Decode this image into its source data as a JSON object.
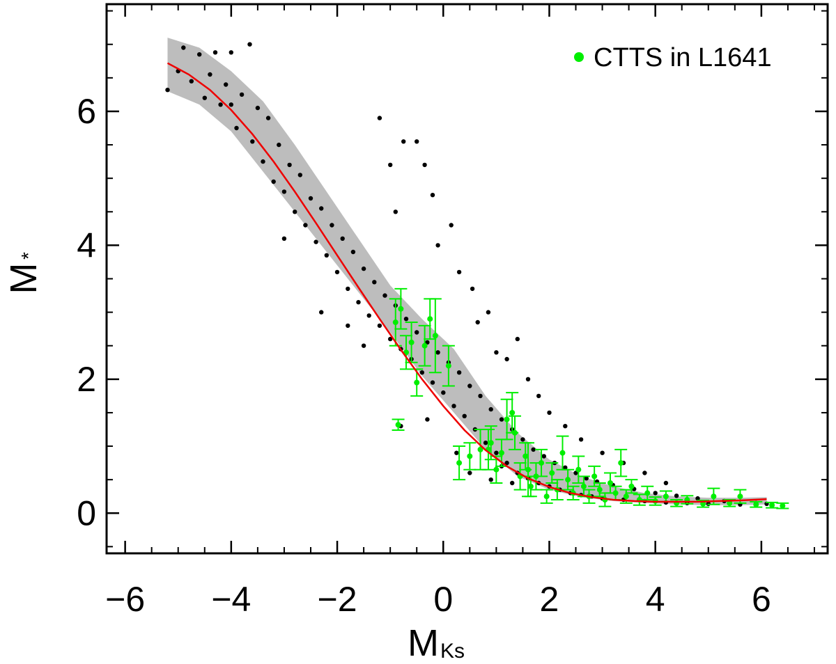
{
  "chart_data": {
    "type": "scatter",
    "title": "",
    "xlabel": {
      "main": "M",
      "sub": "Ks"
    },
    "ylabel": {
      "main": "M",
      "sub": "*"
    },
    "xlim": [
      -6.35,
      7.25
    ],
    "ylim": [
      -0.6,
      7.6
    ],
    "xticks": [
      -6,
      -4,
      -2,
      0,
      2,
      4,
      6
    ],
    "xtick_labels": [
      "−6",
      "−4",
      "−2",
      "0",
      "2",
      "4",
      "6"
    ],
    "yticks": [
      0,
      2,
      4,
      6
    ],
    "ytick_labels": [
      "0",
      "2",
      "4",
      "6"
    ],
    "grid": false,
    "legend": {
      "position": "top-right",
      "entries": [
        "CTTS in L1641"
      ]
    },
    "colors": {
      "model": "#000000",
      "ctts": "#00ee00",
      "fit": "#ee0000",
      "band": "#bdbdbd"
    },
    "series": [
      {
        "kind": "band",
        "x": [
          -5.2,
          -4.6,
          -4.0,
          -3.4,
          -2.8,
          -2.2,
          -1.6,
          -1.0,
          -0.4,
          0.2,
          0.8,
          1.4,
          2.0,
          2.6,
          3.2,
          3.8,
          4.4,
          5.0,
          5.6,
          6.1
        ],
        "lo": [
          6.3,
          6.1,
          5.7,
          5.1,
          4.5,
          3.9,
          3.3,
          2.7,
          2.05,
          1.5,
          0.95,
          0.55,
          0.35,
          0.24,
          0.18,
          0.15,
          0.13,
          0.12,
          0.12,
          0.13
        ],
        "hi": [
          7.1,
          6.95,
          6.6,
          6.15,
          5.5,
          4.8,
          4.1,
          3.4,
          2.9,
          2.45,
          1.75,
          1.2,
          0.8,
          0.55,
          0.4,
          0.3,
          0.25,
          0.23,
          0.23,
          0.24
        ]
      },
      {
        "kind": "model-points",
        "points": [
          [
            -5.2,
            6.32
          ],
          [
            -5.0,
            6.6
          ],
          [
            -4.9,
            6.95
          ],
          [
            -4.75,
            6.45
          ],
          [
            -4.6,
            6.85
          ],
          [
            -4.5,
            6.2
          ],
          [
            -4.4,
            6.55
          ],
          [
            -4.3,
            6.88
          ],
          [
            -4.2,
            6.1
          ],
          [
            -4.1,
            6.4
          ],
          [
            -4.0,
            6.88
          ],
          [
            -3.9,
            5.75
          ],
          [
            -3.8,
            6.25
          ],
          [
            -3.65,
            7.0
          ],
          [
            -3.6,
            5.55
          ],
          [
            -3.5,
            6.05
          ],
          [
            -3.4,
            5.25
          ],
          [
            -3.3,
            5.9
          ],
          [
            -3.2,
            4.95
          ],
          [
            -3.1,
            5.5
          ],
          [
            -3.0,
            4.8
          ],
          [
            -2.9,
            5.2
          ],
          [
            -2.8,
            4.5
          ],
          [
            -2.7,
            5.05
          ],
          [
            -2.6,
            4.3
          ],
          [
            -2.5,
            4.7
          ],
          [
            -2.4,
            4.05
          ],
          [
            -2.3,
            4.55
          ],
          [
            -2.2,
            3.85
          ],
          [
            -2.1,
            4.3
          ],
          [
            -2.0,
            3.6
          ],
          [
            -1.9,
            4.1
          ],
          [
            -1.8,
            3.35
          ],
          [
            -1.7,
            3.9
          ],
          [
            -1.6,
            3.15
          ],
          [
            -1.5,
            3.65
          ],
          [
            -1.4,
            2.95
          ],
          [
            -1.3,
            3.45
          ],
          [
            -1.2,
            2.8
          ],
          [
            -1.1,
            3.25
          ],
          [
            -1.0,
            2.6
          ],
          [
            -0.9,
            3.1
          ],
          [
            -0.8,
            2.45
          ],
          [
            -0.7,
            2.9
          ],
          [
            -0.6,
            2.3
          ],
          [
            -0.5,
            2.7
          ],
          [
            -0.4,
            2.1
          ],
          [
            -0.3,
            2.55
          ],
          [
            -0.2,
            1.95
          ],
          [
            -0.1,
            2.4
          ],
          [
            0.0,
            1.8
          ],
          [
            0.1,
            2.25
          ],
          [
            0.2,
            1.6
          ],
          [
            0.3,
            2.1
          ],
          [
            0.4,
            1.45
          ],
          [
            0.5,
            1.9
          ],
          [
            0.6,
            1.25
          ],
          [
            0.7,
            1.75
          ],
          [
            0.8,
            1.05
          ],
          [
            0.9,
            1.55
          ],
          [
            1.0,
            0.9
          ],
          [
            1.1,
            1.4
          ],
          [
            1.2,
            0.75
          ],
          [
            1.3,
            1.25
          ],
          [
            1.4,
            0.6
          ],
          [
            1.5,
            1.1
          ],
          [
            1.6,
            0.52
          ],
          [
            1.7,
            0.95
          ],
          [
            1.8,
            0.45
          ],
          [
            1.9,
            0.85
          ],
          [
            2.0,
            0.4
          ],
          [
            2.1,
            0.75
          ],
          [
            2.2,
            0.35
          ],
          [
            2.3,
            0.68
          ],
          [
            2.4,
            0.3
          ],
          [
            2.5,
            0.6
          ],
          [
            2.6,
            0.27
          ],
          [
            2.7,
            0.52
          ],
          [
            2.8,
            0.25
          ],
          [
            2.9,
            0.47
          ],
          [
            3.0,
            0.22
          ],
          [
            3.2,
            0.42
          ],
          [
            3.4,
            0.2
          ],
          [
            3.6,
            0.36
          ],
          [
            3.8,
            0.18
          ],
          [
            4.0,
            0.3
          ],
          [
            4.2,
            0.16
          ],
          [
            4.4,
            0.26
          ],
          [
            4.6,
            0.15
          ],
          [
            4.8,
            0.22
          ],
          [
            5.0,
            0.14
          ],
          [
            5.3,
            0.18
          ],
          [
            5.6,
            0.13
          ],
          [
            5.9,
            0.15
          ],
          [
            6.1,
            0.14
          ],
          [
            -1.2,
            5.9
          ],
          [
            -1.0,
            5.2
          ],
          [
            -0.9,
            4.5
          ],
          [
            -0.75,
            5.55
          ],
          [
            -0.5,
            5.55
          ],
          [
            -0.35,
            5.2
          ],
          [
            -0.2,
            4.75
          ],
          [
            -0.1,
            4.0
          ],
          [
            0.15,
            4.3
          ],
          [
            0.3,
            3.6
          ],
          [
            0.55,
            3.35
          ],
          [
            0.65,
            2.85
          ],
          [
            0.85,
            3.0
          ],
          [
            1.0,
            2.4
          ],
          [
            1.2,
            2.3
          ],
          [
            1.4,
            2.6
          ],
          [
            1.6,
            2.0
          ],
          [
            1.8,
            1.75
          ],
          [
            2.0,
            1.5
          ],
          [
            2.3,
            1.3
          ],
          [
            2.6,
            1.1
          ],
          [
            3.0,
            0.9
          ],
          [
            3.4,
            0.75
          ],
          [
            3.8,
            0.6
          ],
          [
            4.2,
            0.45
          ],
          [
            -1.5,
            2.5
          ],
          [
            -1.8,
            2.8
          ],
          [
            -2.3,
            3.0
          ],
          [
            -3.0,
            4.1
          ],
          [
            -4.0,
            6.1
          ],
          [
            0.25,
            0.9
          ],
          [
            0.5,
            0.6
          ],
          [
            0.9,
            0.5
          ],
          [
            1.3,
            0.45
          ],
          [
            -0.8,
            1.3
          ],
          [
            1.1,
            0.7
          ],
          [
            -0.3,
            1.4
          ]
        ]
      },
      {
        "kind": "ctts-points",
        "name": "CTTS in L1641",
        "points": [
          [
            -0.9,
            2.85,
            0.35
          ],
          [
            -0.8,
            3.05,
            0.3
          ],
          [
            -0.7,
            2.4,
            0.25
          ],
          [
            -0.6,
            2.55,
            0.3
          ],
          [
            -0.5,
            1.95,
            0.2
          ],
          [
            -0.35,
            2.5,
            0.3
          ],
          [
            -0.25,
            2.9,
            0.3
          ],
          [
            -0.15,
            2.65,
            0.55
          ],
          [
            0.1,
            2.2,
            0.3
          ],
          [
            0.3,
            0.75,
            0.25
          ],
          [
            0.5,
            0.85,
            0.2
          ],
          [
            0.7,
            0.95,
            0.3
          ],
          [
            0.9,
            1.05,
            0.25
          ],
          [
            1.0,
            0.65,
            0.2
          ],
          [
            1.1,
            0.9,
            0.2
          ],
          [
            1.2,
            1.4,
            0.3
          ],
          [
            1.3,
            1.5,
            0.3
          ],
          [
            1.35,
            1.2,
            0.25
          ],
          [
            1.45,
            0.55,
            0.2
          ],
          [
            1.55,
            0.85,
            0.2
          ],
          [
            1.65,
            0.4,
            0.15
          ],
          [
            1.75,
            0.55,
            0.2
          ],
          [
            1.85,
            0.75,
            0.2
          ],
          [
            1.95,
            0.25,
            0.1
          ],
          [
            2.05,
            0.6,
            0.15
          ],
          [
            2.15,
            0.35,
            0.15
          ],
          [
            2.25,
            0.9,
            0.25
          ],
          [
            2.35,
            0.5,
            0.15
          ],
          [
            2.45,
            0.3,
            0.1
          ],
          [
            2.55,
            0.65,
            0.2
          ],
          [
            2.65,
            0.4,
            0.15
          ],
          [
            2.75,
            0.25,
            0.1
          ],
          [
            2.85,
            0.55,
            0.15
          ],
          [
            2.95,
            0.35,
            0.1
          ],
          [
            3.05,
            0.2,
            0.1
          ],
          [
            3.15,
            0.45,
            0.15
          ],
          [
            3.25,
            0.3,
            0.1
          ],
          [
            3.35,
            0.75,
            0.2
          ],
          [
            3.45,
            0.25,
            0.1
          ],
          [
            3.55,
            0.4,
            0.1
          ],
          [
            3.7,
            0.2,
            0.08
          ],
          [
            3.85,
            0.3,
            0.1
          ],
          [
            4.0,
            0.18,
            0.06
          ],
          [
            4.2,
            0.25,
            0.08
          ],
          [
            4.4,
            0.15,
            0.05
          ],
          [
            4.6,
            0.2,
            0.06
          ],
          [
            4.9,
            0.14,
            0.05
          ],
          [
            5.1,
            0.25,
            0.12
          ],
          [
            5.4,
            0.15,
            0.05
          ],
          [
            5.6,
            0.25,
            0.1
          ],
          [
            5.9,
            0.13,
            0.04
          ],
          [
            6.2,
            0.12,
            0.04
          ],
          [
            6.4,
            0.11,
            0.04
          ],
          [
            -0.85,
            1.32,
            0.08
          ],
          [
            0.85,
            0.95,
            0.3
          ],
          [
            1.6,
            0.65,
            0.4
          ]
        ]
      },
      {
        "kind": "fit",
        "x": [
          -5.2,
          -4.8,
          -4.4,
          -4.0,
          -3.6,
          -3.2,
          -2.8,
          -2.4,
          -2.0,
          -1.6,
          -1.2,
          -0.8,
          -0.4,
          0.0,
          0.4,
          0.8,
          1.2,
          1.6,
          2.0,
          2.4,
          2.8,
          3.2,
          3.6,
          4.0,
          4.4,
          4.8,
          5.2,
          5.6,
          6.1
        ],
        "y": [
          6.72,
          6.55,
          6.32,
          6.02,
          5.66,
          5.25,
          4.8,
          4.33,
          3.85,
          3.37,
          2.9,
          2.44,
          2.0,
          1.6,
          1.24,
          0.94,
          0.7,
          0.52,
          0.39,
          0.3,
          0.24,
          0.2,
          0.18,
          0.17,
          0.17,
          0.17,
          0.18,
          0.19,
          0.21
        ]
      }
    ]
  }
}
